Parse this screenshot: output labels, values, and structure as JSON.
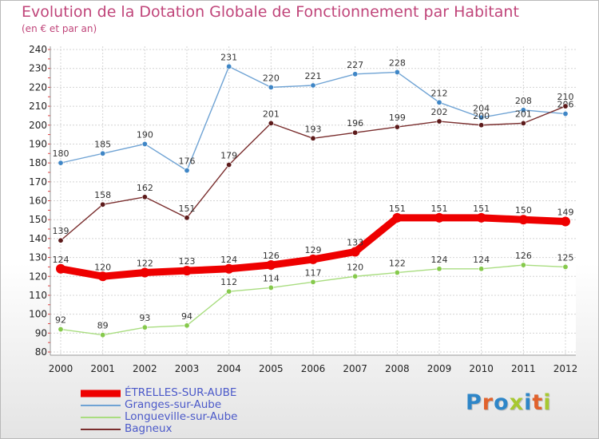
{
  "title": "Evolution de la Dotation Globale de Fonctionnement par Habitant",
  "subtitle": "(en € et par an)",
  "brand": {
    "text": "Proxiti",
    "letter_colors": [
      "#2e86c8",
      "#e1622c",
      "#2e86c8",
      "#a7c831",
      "#2e86c8",
      "#e1622c",
      "#a7c831"
    ]
  },
  "chart_data": {
    "type": "line",
    "x": [
      "2000",
      "2001",
      "2002",
      "2003",
      "2004",
      "2005",
      "2006",
      "2007",
      "2008",
      "2009",
      "2010",
      "2011",
      "2012"
    ],
    "ylim": [
      80,
      240
    ],
    "yticks": [
      "80",
      "90",
      "100",
      "110",
      "120",
      "130",
      "140",
      "150",
      "160",
      "170",
      "180",
      "190",
      "200",
      "210",
      "220",
      "230",
      "240"
    ],
    "grid": true,
    "legend_position": "bottom-left",
    "series": [
      {
        "name": "Granges-sur-Aube",
        "color": "#6fa3d4",
        "marker_color": "#3f86c6",
        "values": [
          180,
          185,
          190,
          176,
          231,
          220,
          221,
          227,
          228,
          212,
          204,
          208,
          206
        ]
      },
      {
        "name": "Bagneux",
        "color": "#7a2e2e",
        "marker_color": "#5c1a1a",
        "values": [
          139,
          158,
          162,
          151,
          179,
          201,
          193,
          196,
          199,
          202,
          200,
          201,
          210
        ]
      },
      {
        "name": "Longueville-sur-Aube",
        "color": "#a9dd80",
        "marker_color": "#86c94c",
        "values": [
          92,
          89,
          93,
          94,
          112,
          114,
          117,
          120,
          122,
          124,
          124,
          126,
          125
        ]
      },
      {
        "name": "ÉTRELLES-SUR-AUBE",
        "color": "#ee0000",
        "marker_color": "#ee0000",
        "values": [
          124,
          120,
          122,
          123,
          124,
          126,
          129,
          133,
          151,
          151,
          151,
          150,
          149
        ]
      }
    ],
    "legend_order": [
      "ÉTRELLES-SUR-AUBE",
      "Granges-sur-Aube",
      "Longueville-sur-Aube",
      "Bagneux"
    ]
  }
}
